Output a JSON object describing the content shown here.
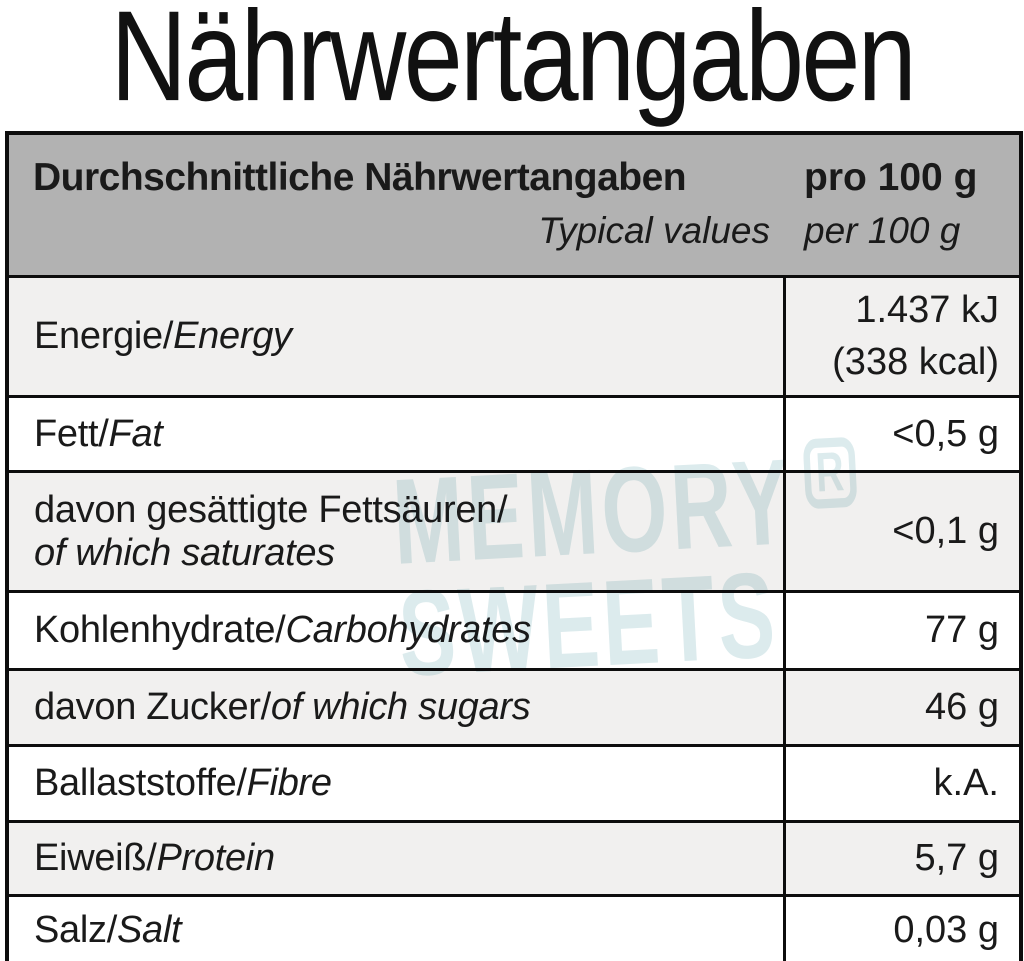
{
  "title": "Nährwertangaben",
  "table": {
    "header": {
      "name_de": "Durchschnittliche Nährwertangaben",
      "name_en": "Typical values",
      "amount_de": "pro 100 g",
      "amount_en": "per 100 g"
    },
    "rows": [
      {
        "label_de": "Energie/",
        "label_en": "Energy",
        "value": "1.437 kJ",
        "value2": "(338 kcal)"
      },
      {
        "label_de": "Fett/",
        "label_en": "Fat",
        "value": "<0,5 g"
      },
      {
        "label_de": "davon gesättigte Fettsäuren/",
        "label_en": "of which saturates",
        "value": "<0,1 g"
      },
      {
        "label_de": "Kohlenhydrate/",
        "label_en": "Carbohydrates",
        "value": "77 g"
      },
      {
        "label_de": "davon Zucker/",
        "label_en": "of which sugars",
        "value": "46 g"
      },
      {
        "label_de": "Ballaststoffe/",
        "label_en": "Fibre",
        "value": "k.A."
      },
      {
        "label_de": "Eiweiß/",
        "label_en": "Protein",
        "value": "5,7 g"
      },
      {
        "label_de": "Salz/",
        "label_en": "Salt",
        "value": "0,03 g"
      }
    ]
  },
  "watermark": {
    "line1": "MEMORY",
    "reg": "R",
    "line2": "SWEETS"
  },
  "colors": {
    "header_bg": "#b2b2b2",
    "row_shaded_bg": "#f1f0ef",
    "row_plain_bg": "#ffffff",
    "border": "#0d0d0d",
    "text": "#1a1a1a",
    "watermark": "#dcebed"
  }
}
